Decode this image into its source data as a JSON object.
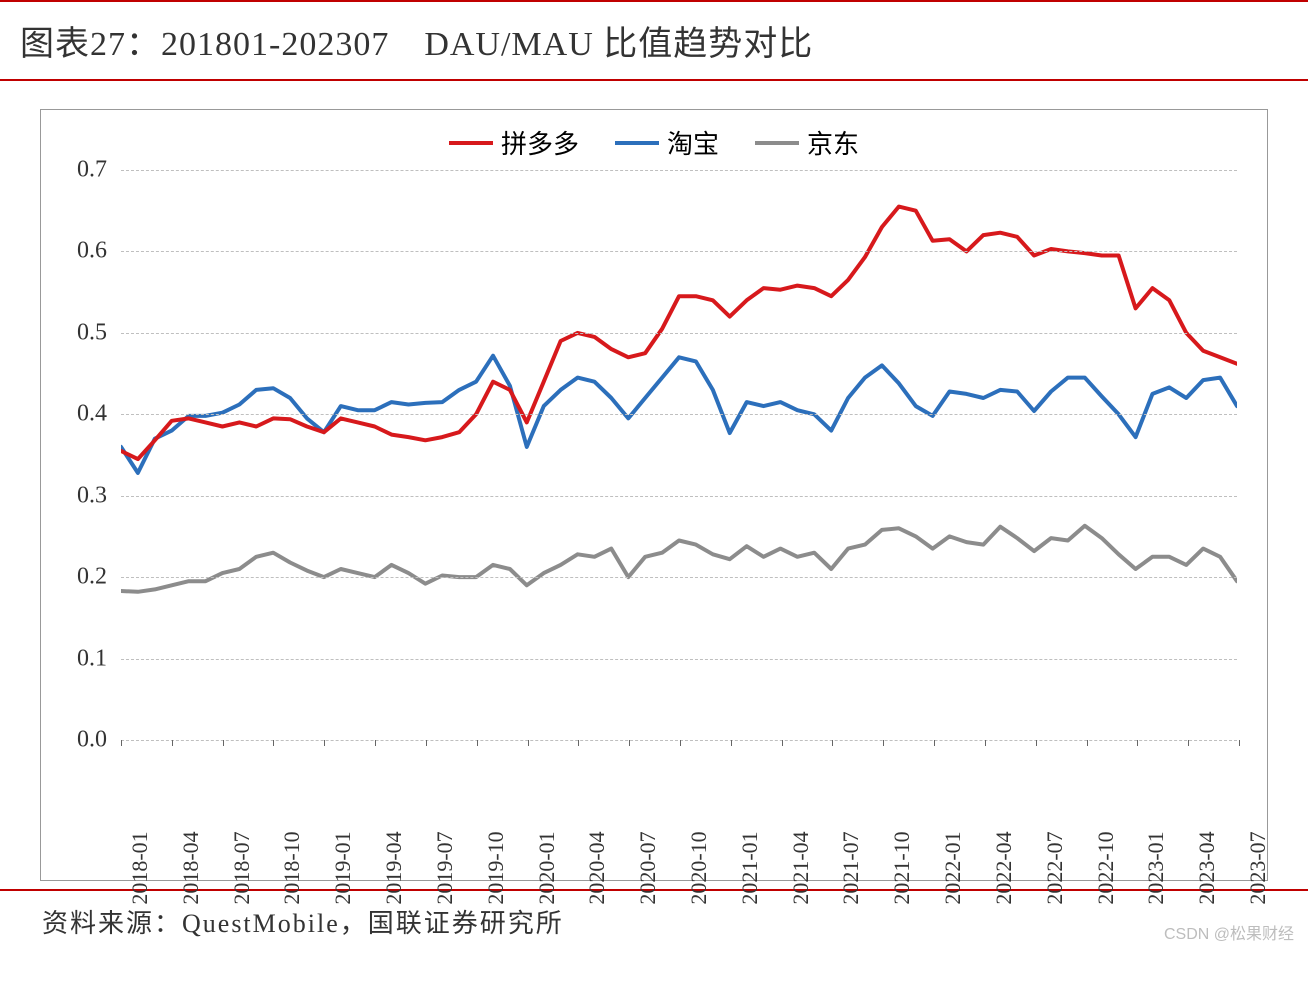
{
  "title": "图表27：201801-202307　DAU/MAU 比值趋势对比",
  "footer": "资料来源：QuestMobile，国联证券研究所",
  "watermark": "CSDN @松果财经",
  "chart": {
    "type": "line",
    "background_color": "#ffffff",
    "border_color": "#999999",
    "accent_rule_color": "#c00000",
    "grid_color": "#bfbfbf",
    "ylim": [
      0.0,
      0.7
    ],
    "yticks": [
      0.0,
      0.1,
      0.2,
      0.3,
      0.4,
      0.5,
      0.6,
      0.7
    ],
    "ytick_labels": [
      "0.0",
      "0.1",
      "0.2",
      "0.3",
      "0.4",
      "0.5",
      "0.6",
      "0.7"
    ],
    "tick_fontsize": 24,
    "xlabel_fontsize": 22,
    "title_fontsize": 34,
    "footer_fontsize": 26,
    "line_width": 4,
    "x_labels_major": [
      "2018-01",
      "2018-04",
      "2018-07",
      "2018-10",
      "2019-01",
      "2019-04",
      "2019-07",
      "2019-10",
      "2020-01",
      "2020-04",
      "2020-07",
      "2020-10",
      "2021-01",
      "2021-04",
      "2021-07",
      "2021-10",
      "2022-01",
      "2022-04",
      "2022-07",
      "2022-10",
      "2023-01",
      "2023-04",
      "2023-07"
    ],
    "x_positions_major_idx": [
      0,
      3,
      6,
      9,
      12,
      15,
      18,
      21,
      24,
      27,
      30,
      33,
      36,
      39,
      42,
      45,
      48,
      51,
      54,
      57,
      60,
      63,
      66
    ],
    "n_points": 67,
    "legend": [
      {
        "label": "拼多多",
        "color": "#d7191c"
      },
      {
        "label": "淘宝",
        "color": "#2c6fbb"
      },
      {
        "label": "京东",
        "color": "#8c8c8c"
      }
    ],
    "series": {
      "pdd": {
        "color": "#d7191c",
        "values": [
          0.355,
          0.345,
          0.368,
          0.392,
          0.395,
          0.39,
          0.385,
          0.39,
          0.385,
          0.395,
          0.394,
          0.385,
          0.378,
          0.395,
          0.39,
          0.385,
          0.375,
          0.372,
          0.368,
          0.372,
          0.378,
          0.4,
          0.44,
          0.43,
          0.39,
          0.44,
          0.49,
          0.5,
          0.495,
          0.48,
          0.47,
          0.475,
          0.505,
          0.545,
          0.545,
          0.54,
          0.52,
          0.54,
          0.555,
          0.553,
          0.558,
          0.555,
          0.545,
          0.565,
          0.593,
          0.63,
          0.655,
          0.65,
          0.613,
          0.615,
          0.6,
          0.62,
          0.623,
          0.618,
          0.595,
          0.603,
          0.6,
          0.598,
          0.595,
          0.595,
          0.53,
          0.555,
          0.54,
          0.5,
          0.478,
          0.47,
          0.462
        ]
      },
      "taobao": {
        "color": "#2c6fbb",
        "values": [
          0.36,
          0.328,
          0.37,
          0.38,
          0.398,
          0.398,
          0.402,
          0.412,
          0.43,
          0.432,
          0.42,
          0.395,
          0.378,
          0.41,
          0.405,
          0.405,
          0.415,
          0.412,
          0.414,
          0.415,
          0.43,
          0.44,
          0.472,
          0.435,
          0.36,
          0.41,
          0.43,
          0.445,
          0.44,
          0.42,
          0.395,
          0.42,
          0.445,
          0.47,
          0.465,
          0.43,
          0.377,
          0.415,
          0.41,
          0.415,
          0.405,
          0.4,
          0.38,
          0.42,
          0.445,
          0.46,
          0.438,
          0.41,
          0.398,
          0.428,
          0.425,
          0.42,
          0.43,
          0.428,
          0.404,
          0.428,
          0.445,
          0.445,
          0.422,
          0.4,
          0.372,
          0.425,
          0.433,
          0.42,
          0.442,
          0.445,
          0.41
        ]
      },
      "jd": {
        "color": "#8c8c8c",
        "values": [
          0.183,
          0.182,
          0.185,
          0.19,
          0.195,
          0.195,
          0.205,
          0.21,
          0.225,
          0.23,
          0.218,
          0.208,
          0.2,
          0.21,
          0.205,
          0.2,
          0.215,
          0.205,
          0.192,
          0.202,
          0.2,
          0.2,
          0.215,
          0.21,
          0.19,
          0.205,
          0.215,
          0.228,
          0.225,
          0.235,
          0.2,
          0.225,
          0.23,
          0.245,
          0.24,
          0.228,
          0.222,
          0.238,
          0.225,
          0.235,
          0.225,
          0.23,
          0.21,
          0.235,
          0.24,
          0.258,
          0.26,
          0.25,
          0.235,
          0.25,
          0.243,
          0.24,
          0.262,
          0.248,
          0.232,
          0.248,
          0.245,
          0.263,
          0.248,
          0.228,
          0.21,
          0.225,
          0.225,
          0.215,
          0.235,
          0.225,
          0.195
        ]
      }
    }
  }
}
